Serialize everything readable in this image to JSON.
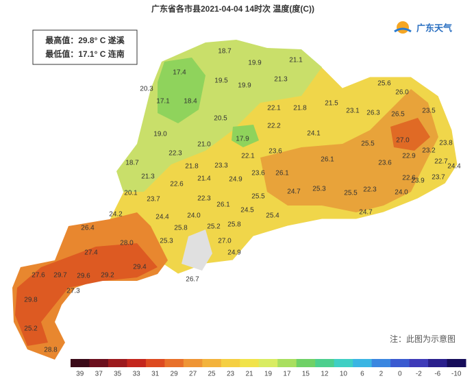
{
  "header": {
    "title": "广东省各市县2021-04-04 14时次 温度(度(C))",
    "logo": "广东天气"
  },
  "summary": {
    "max": "最高值：29.8° C 遂溪",
    "min": "最低值：17.1° C 连南"
  },
  "labels": [
    "18.7",
    "19.9",
    "21.1",
    "17.4",
    "19.5",
    "19.9",
    "21.3",
    "20.3",
    "17.1",
    "18.4",
    "25.6",
    "26.0",
    "22.1",
    "21.8",
    "21.5",
    "23.1",
    "26.3",
    "26.5",
    "23.5",
    "20.5",
    "22.2",
    "19.0",
    "17.9",
    "24.1",
    "25.5",
    "27.0",
    "23.8",
    "21.0",
    "23.2",
    "22.3",
    "23.6",
    "22.1",
    "26.1",
    "22.9",
    "22.7",
    "24.4",
    "18.7",
    "21.8",
    "23.3",
    "23.6",
    "21.3",
    "26.1",
    "23.6",
    "24.9",
    "22.6",
    "23.7",
    "22.6",
    "21.4",
    "23.9",
    "20.1",
    "25.3",
    "24.7",
    "25.5",
    "22.3",
    "24.0",
    "23.7",
    "22.3",
    "25.5",
    "26.1",
    "24.2",
    "24.4",
    "24.0",
    "24.5",
    "25.4",
    "24.7",
    "26.4",
    "25.8",
    "25.2",
    "25.8",
    "28.0",
    "25.3",
    "27.0",
    "27.4",
    "24.9",
    "29.4",
    "27.6",
    "29.7",
    "29.6",
    "29.2",
    "26.7",
    "27.3",
    "29.8",
    "25.2",
    "28.8"
  ],
  "legend": {
    "ticks": [
      "39",
      "37",
      "35",
      "33",
      "31",
      "29",
      "27",
      "25",
      "23",
      "21",
      "19",
      "17",
      "15",
      "12",
      "10",
      "6",
      "2",
      "0",
      "-2",
      "-6",
      "-10"
    ],
    "colors": [
      "#3a0a18",
      "#6b0f1e",
      "#9c1a1e",
      "#c4261d",
      "#dd4a20",
      "#e8702a",
      "#ef9535",
      "#f3b33c",
      "#f5cf42",
      "#f1e34a",
      "#d9ec62",
      "#a9df5f",
      "#6fd166",
      "#4ccf8e",
      "#3fcfc4",
      "#3ab5e3",
      "#3a86e0",
      "#3a5ad0",
      "#3e3ab8",
      "#2a1f8c",
      "#160d5a"
    ]
  },
  "note": "注：此图为示意图"
}
